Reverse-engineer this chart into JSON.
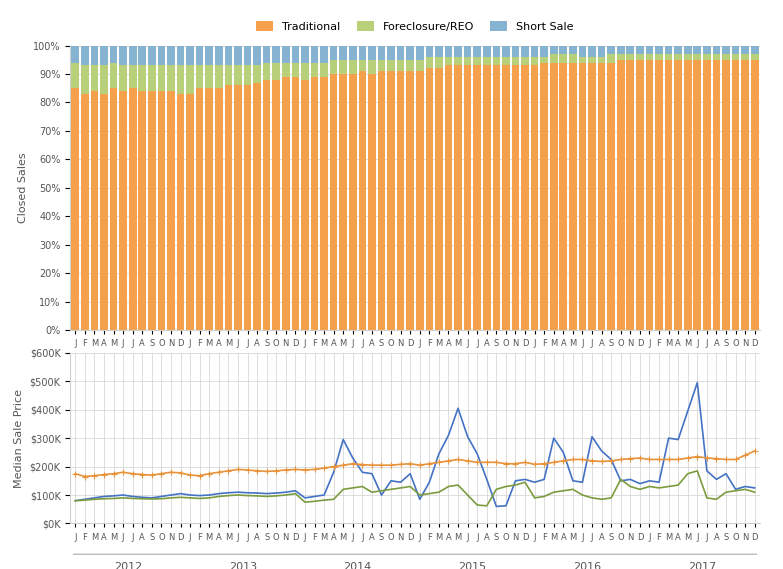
{
  "months_per_year": 12,
  "num_years": 6,
  "year_labels": [
    "2012",
    "2013",
    "2014",
    "2015",
    "2016",
    "2017"
  ],
  "month_labels": [
    "J",
    "F",
    "M",
    "A",
    "M",
    "J",
    "J",
    "A",
    "S",
    "O",
    "N",
    "D"
  ],
  "traditional_pct": [
    85,
    83,
    84,
    83,
    85,
    84,
    85,
    84,
    84,
    84,
    84,
    83,
    83,
    85,
    85,
    85,
    86,
    86,
    86,
    87,
    88,
    88,
    89,
    89,
    88,
    89,
    89,
    90,
    90,
    90,
    91,
    90,
    91,
    91,
    91,
    91,
    91,
    92,
    92,
    93,
    93,
    93,
    93,
    93,
    93,
    93,
    93,
    93,
    93,
    94,
    94,
    94,
    94,
    94,
    94,
    94,
    94,
    95,
    95,
    95,
    95,
    95,
    95,
    95,
    95,
    95,
    95,
    95,
    95,
    95,
    95,
    95
  ],
  "foreclosure_pct": [
    9,
    10,
    9,
    10,
    9,
    9,
    8,
    9,
    9,
    9,
    9,
    10,
    10,
    8,
    8,
    8,
    7,
    7,
    7,
    6,
    6,
    6,
    5,
    5,
    6,
    5,
    5,
    5,
    5,
    5,
    4,
    5,
    4,
    4,
    4,
    4,
    4,
    4,
    4,
    3,
    3,
    3,
    3,
    3,
    3,
    3,
    3,
    3,
    3,
    2,
    3,
    3,
    3,
    2,
    2,
    2,
    3,
    2,
    2,
    2,
    2,
    2,
    2,
    2,
    2,
    2,
    2,
    2,
    2,
    2,
    2,
    2
  ],
  "shortsale_pct": [
    6,
    7,
    7,
    7,
    6,
    7,
    7,
    7,
    7,
    7,
    7,
    7,
    7,
    7,
    7,
    7,
    7,
    7,
    7,
    7,
    6,
    6,
    6,
    6,
    6,
    6,
    6,
    5,
    5,
    5,
    5,
    5,
    5,
    5,
    5,
    5,
    5,
    4,
    4,
    4,
    4,
    4,
    4,
    4,
    4,
    4,
    4,
    4,
    4,
    4,
    3,
    3,
    3,
    4,
    4,
    4,
    3,
    3,
    3,
    3,
    3,
    3,
    3,
    3,
    3,
    3,
    3,
    3,
    3,
    3,
    3,
    3
  ],
  "traditional_color": "#F5A04A",
  "foreclosure_color": "#B8D07A",
  "shortsale_color": "#85B3D1",
  "line_traditional_color": "#E8923A",
  "line_foreclosure_color": "#7B9C3E",
  "line_shortsale_color": "#4472C4",
  "median_traditional": [
    175000,
    165000,
    168000,
    172000,
    175000,
    180000,
    175000,
    172000,
    170000,
    175000,
    180000,
    178000,
    170000,
    168000,
    175000,
    180000,
    185000,
    190000,
    188000,
    185000,
    183000,
    185000,
    188000,
    190000,
    188000,
    190000,
    195000,
    200000,
    205000,
    210000,
    207000,
    205000,
    205000,
    205000,
    208000,
    210000,
    205000,
    210000,
    215000,
    220000,
    225000,
    220000,
    215000,
    215000,
    215000,
    210000,
    210000,
    215000,
    208000,
    210000,
    215000,
    220000,
    225000,
    225000,
    220000,
    218000,
    220000,
    225000,
    228000,
    230000,
    225000,
    225000,
    225000,
    225000,
    230000,
    235000,
    230000,
    228000,
    225000,
    225000,
    240000,
    255000
  ],
  "median_foreclosure": [
    80000,
    82000,
    85000,
    87000,
    88000,
    90000,
    88000,
    87000,
    86000,
    87000,
    90000,
    92000,
    90000,
    88000,
    90000,
    95000,
    98000,
    100000,
    98000,
    97000,
    95000,
    97000,
    100000,
    105000,
    75000,
    78000,
    82000,
    85000,
    120000,
    125000,
    130000,
    110000,
    115000,
    120000,
    125000,
    130000,
    100000,
    105000,
    110000,
    130000,
    135000,
    100000,
    65000,
    62000,
    120000,
    130000,
    135000,
    145000,
    90000,
    95000,
    110000,
    115000,
    120000,
    100000,
    90000,
    85000,
    90000,
    155000,
    130000,
    120000,
    130000,
    125000,
    130000,
    135000,
    175000,
    185000,
    90000,
    85000,
    110000,
    115000,
    120000,
    110000
  ],
  "median_shortsale": [
    80000,
    85000,
    90000,
    95000,
    97000,
    100000,
    95000,
    92000,
    90000,
    95000,
    100000,
    105000,
    100000,
    98000,
    100000,
    105000,
    108000,
    110000,
    108000,
    107000,
    105000,
    107000,
    110000,
    115000,
    90000,
    95000,
    100000,
    180000,
    295000,
    230000,
    180000,
    175000,
    100000,
    150000,
    145000,
    175000,
    85000,
    145000,
    245000,
    310000,
    405000,
    305000,
    245000,
    155000,
    60000,
    62000,
    150000,
    155000,
    145000,
    155000,
    300000,
    250000,
    150000,
    145000,
    305000,
    255000,
    225000,
    150000,
    155000,
    140000,
    150000,
    145000,
    300000,
    295000,
    395000,
    495000,
    185000,
    155000,
    175000,
    120000,
    130000,
    125000
  ],
  "bar_ylabel": "Closed Sales",
  "line_ylabel": "Median Sale Price",
  "background_color": "#FFFFFF",
  "grid_color": "#D0D0D0",
  "axis_text_color": "#555555",
  "bar_ylim": [
    0,
    1.0
  ],
  "line_ylim": [
    0,
    600000
  ]
}
